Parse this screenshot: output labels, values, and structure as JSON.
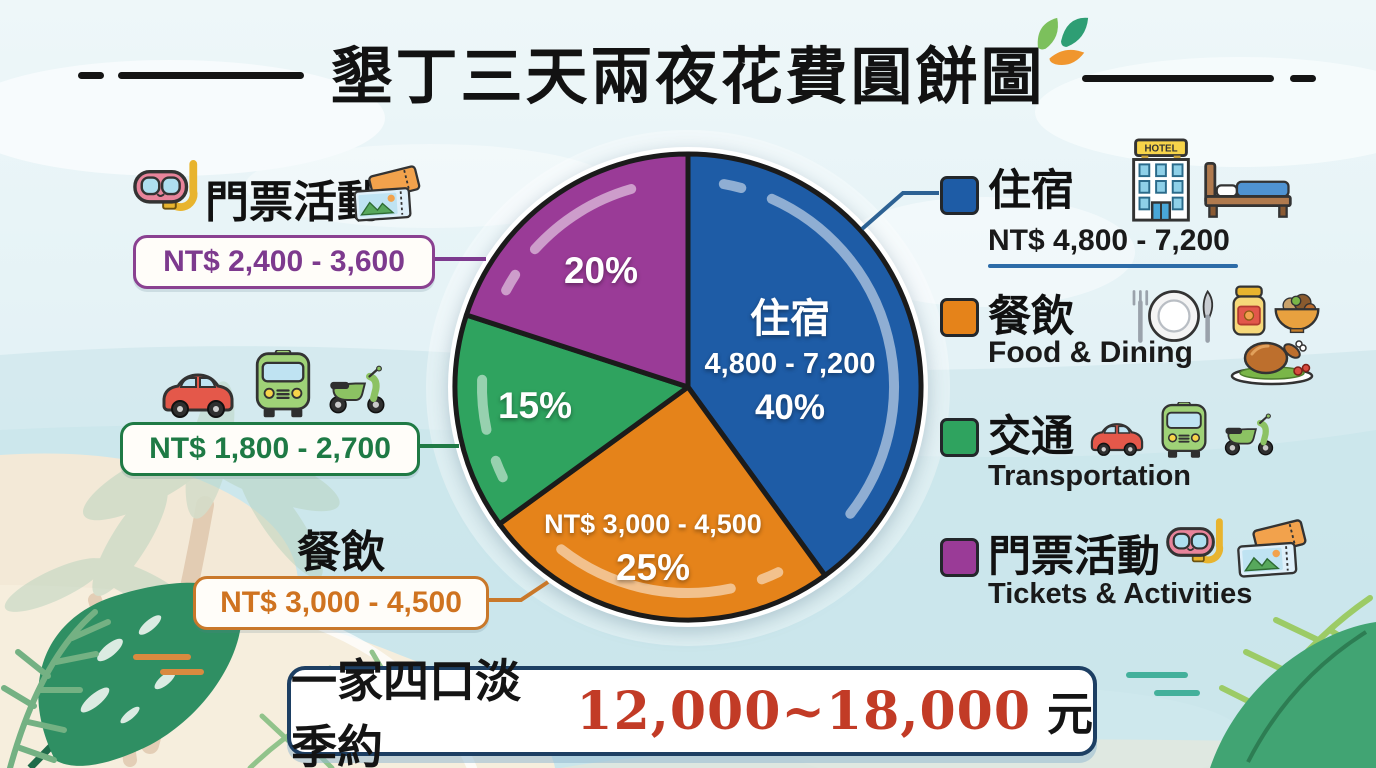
{
  "title": {
    "text": "墾丁三天兩夜花費圓餅圖"
  },
  "chart_data": {
    "type": "pie",
    "title": "墾丁三天兩夜花費圓餅圖",
    "unit": "NT$",
    "direction": "clockwise",
    "start_angle_deg": 0,
    "slices": [
      {
        "name": "accommodation",
        "label": "住宿",
        "pct": 40,
        "pct_text": "40%",
        "amount_text": "4,800 - 7,200",
        "range_nt": "NT$ 4,800 - 7,200",
        "color": "#1e5ca6"
      },
      {
        "name": "dining",
        "label": "餐飲",
        "pct": 25,
        "pct_text": "25%",
        "amount_text": "NT$ 3,000 - 4,500",
        "range_nt": "NT$ 3,000 - 4,500",
        "color": "#e5831a"
      },
      {
        "name": "transport",
        "label": "交通",
        "pct": 15,
        "pct_text": "15%",
        "range_nt": "NT$ 1,800 - 2,700",
        "color": "#2fa35f"
      },
      {
        "name": "tickets",
        "label": "門票活動",
        "pct": 20,
        "pct_text": "20%",
        "range_nt": "NT$ 2,400 - 3,600",
        "color": "#9a3b97"
      }
    ],
    "total_note": "一家四口淡季約 12,000~18,000 元"
  },
  "callouts": {
    "tickets": {
      "label": "門票活動",
      "range": "NT$ 2,400 - 3,600"
    },
    "transport": {
      "range": "NT$ 1,800 - 2,700"
    },
    "dining": {
      "label": "餐飲",
      "range": "NT$ 3,000 - 4,500"
    }
  },
  "legend": {
    "items": [
      {
        "label": "住宿",
        "sub": "NT$ 4,800 - 7,200"
      },
      {
        "label": "餐飲",
        "sub": "Food & Dining"
      },
      {
        "label": "交通",
        "sub": "Transportation"
      },
      {
        "label": "門票活動",
        "sub": "Tickets & Activities"
      }
    ]
  },
  "footer": {
    "prefix": "一家四口淡季約",
    "amount": "12,000~18,000",
    "suffix": "元"
  },
  "icons": {
    "hotel_sign": "HOTEL",
    "names": [
      "snorkel-icon",
      "tickets-icon",
      "car-icon",
      "bus-icon",
      "scooter-icon",
      "hotel-icon",
      "bed-icon",
      "cutlery-plate-icon",
      "jam-jar-icon",
      "rice-bowl-icon",
      "roast-turkey-icon",
      "title-leaves-icon"
    ]
  },
  "colors": {
    "accommodation": "#1e5ca6",
    "dining": "#e5831a",
    "transport": "#2fa35f",
    "tickets": "#9a3b97",
    "footer_red": "#c23b26",
    "footer_border": "#1d3f63",
    "background_sky": "#e8f4f7",
    "sand": "#f3e9d7"
  }
}
